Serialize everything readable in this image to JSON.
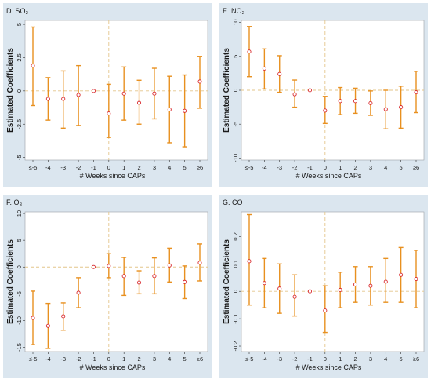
{
  "figure": {
    "panels": [
      {
        "id": "D",
        "title": "D. SO₂",
        "xlabel": "# Weeks since CAPs",
        "ylabel": "Estimated Coefficients"
      },
      {
        "id": "E",
        "title": "E. NO₂",
        "xlabel": "# Weeks since CAPs",
        "ylabel": "Estimated Coefficients"
      },
      {
        "id": "F",
        "title": "F. O₃",
        "xlabel": "# Weeks since CAPs",
        "ylabel": "Estimated Coefficients"
      },
      {
        "id": "G",
        "title": "G. CO",
        "xlabel": "# Weeks since CAPs",
        "ylabel": "Estimated Coefficients"
      }
    ]
  },
  "colors": {
    "outer_bg": "#dbe6ef",
    "plot_bg": "#ffffff",
    "errorbar": "#e8901f",
    "marker": "#d8282c",
    "refline": "#e3c58a",
    "text": "#1a1a1a"
  },
  "chart_data": [
    {
      "type": "scatter",
      "title": "D. SO₂",
      "xlabel": "# Weeks since CAPs",
      "ylabel": "Estimated Coefficients",
      "categories": [
        "≤-5",
        "-4",
        "-3",
        "-2",
        "-1",
        "0",
        "1",
        "2",
        "3",
        "4",
        "5",
        "≥6"
      ],
      "values": [
        1.9,
        -0.6,
        -0.6,
        -0.3,
        0.0,
        -1.7,
        -0.2,
        -0.9,
        -0.2,
        -1.4,
        -1.5,
        0.7
      ],
      "lower": [
        -1.1,
        -2.2,
        -2.8,
        -2.6,
        0.0,
        -3.5,
        -2.2,
        -2.5,
        -2.1,
        -3.9,
        -4.2,
        -1.3
      ],
      "upper": [
        4.8,
        1.0,
        1.5,
        1.9,
        0.0,
        0.5,
        1.8,
        0.8,
        1.7,
        1.1,
        1.2,
        2.6
      ],
      "ylim": [
        -5.2,
        5.3
      ],
      "yticks": [
        -5,
        -2.5,
        0,
        2.5,
        5
      ],
      "yticklabels": [
        "-5",
        "-2.5",
        "0",
        "2.5",
        "5"
      ],
      "reference_event_index": 4,
      "grid": false
    },
    {
      "type": "scatter",
      "title": "E. NO₂",
      "xlabel": "# Weeks since CAPs",
      "ylabel": "Estimated Coefficients",
      "categories": [
        "≤-5",
        "-4",
        "-3",
        "-2",
        "-1",
        "0",
        "1",
        "2",
        "3",
        "4",
        "5",
        "≥6"
      ],
      "values": [
        5.7,
        3.2,
        2.4,
        -0.6,
        0.0,
        -3.0,
        -1.6,
        -1.6,
        -1.9,
        -2.8,
        -2.5,
        -0.3
      ],
      "lower": [
        2.0,
        0.2,
        -0.3,
        -2.5,
        0.0,
        -4.9,
        -3.6,
        -3.4,
        -3.7,
        -5.7,
        -5.6,
        -3.3
      ],
      "upper": [
        9.4,
        6.1,
        5.1,
        1.5,
        0.0,
        -0.9,
        0.4,
        0.3,
        -0.1,
        0.0,
        0.6,
        2.8
      ],
      "ylim": [
        -10.3,
        10.3
      ],
      "yticks": [
        -10,
        -5,
        0,
        5,
        10
      ],
      "yticklabels": [
        "-10",
        "-5",
        "0",
        "5",
        "10"
      ],
      "reference_event_index": 4,
      "grid": false
    },
    {
      "type": "scatter",
      "title": "F. O₃",
      "xlabel": "# Weeks since CAPs",
      "ylabel": "Estimated Coefficients",
      "categories": [
        "≤-5",
        "-4",
        "-3",
        "-2",
        "-1",
        "0",
        "1",
        "2",
        "3",
        "4",
        "5",
        "≥6"
      ],
      "values": [
        -9.5,
        -11.0,
        -9.2,
        -4.8,
        0.0,
        0.2,
        -1.7,
        -2.9,
        -1.7,
        0.3,
        -2.8,
        0.8
      ],
      "lower": [
        -14.5,
        -15.2,
        -11.8,
        -7.6,
        0.0,
        -2.0,
        -5.3,
        -5.0,
        -5.0,
        -2.8,
        -5.9,
        -2.6
      ],
      "upper": [
        -4.5,
        -6.8,
        -6.7,
        -2.0,
        0.0,
        2.5,
        1.8,
        -0.7,
        1.7,
        3.5,
        0.2,
        4.3
      ],
      "ylim": [
        -15.8,
        10.3
      ],
      "yticks": [
        -15,
        -10,
        -5,
        0,
        5,
        10
      ],
      "yticklabels": [
        "-15",
        "-10",
        "-5",
        "0",
        "5",
        "10"
      ],
      "reference_event_index": 4,
      "grid": false
    },
    {
      "type": "scatter",
      "title": "G. CO",
      "xlabel": "# Weeks since CAPs",
      "ylabel": "Estimated Coefficients",
      "categories": [
        "≤-5",
        "-4",
        "-3",
        "-2",
        "-1",
        "0",
        "1",
        "2",
        "3",
        "4",
        "5",
        "≥6"
      ],
      "values": [
        0.11,
        0.03,
        0.01,
        -0.02,
        0.0,
        -0.07,
        0.005,
        0.025,
        0.02,
        0.035,
        0.06,
        0.045
      ],
      "lower": [
        -0.05,
        -0.06,
        -0.08,
        -0.09,
        0.0,
        -0.15,
        -0.06,
        -0.04,
        -0.05,
        -0.04,
        -0.04,
        -0.06
      ],
      "upper": [
        0.28,
        0.12,
        0.1,
        0.06,
        0.0,
        0.02,
        0.07,
        0.09,
        0.09,
        0.12,
        0.16,
        0.15
      ],
      "ylim": [
        -0.22,
        0.29
      ],
      "yticks": [
        -0.2,
        -0.1,
        0,
        0.1,
        0.2
      ],
      "yticklabels": [
        "-0.2",
        "-0.1",
        "0",
        "0.1",
        "0.2"
      ],
      "reference_event_index": 4,
      "grid": false
    }
  ]
}
